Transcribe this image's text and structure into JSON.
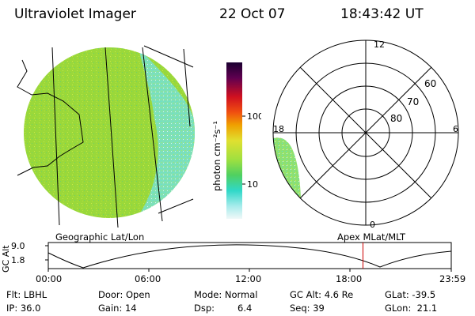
{
  "header": {
    "instrument": "Ultraviolet Imager",
    "date": "22 Oct 07",
    "time": "18:43:42 UT"
  },
  "colorbar": {
    "label": "photon cm⁻²s⁻¹",
    "ticks": [
      {
        "label": "100",
        "value": 100
      },
      {
        "label": "10",
        "value": 10
      }
    ]
  },
  "polar_plot": {
    "mlt_labels": {
      "top": "12",
      "left": "18",
      "right": "6",
      "bottom": "0"
    },
    "lat_labels": [
      "60",
      "70",
      "80"
    ]
  },
  "geo_label": "Geographic Lat/Lon",
  "apex_label": "Apex MLat/MLT",
  "orbit": {
    "ylabel": "GC Alt",
    "y_ticks": [
      "9.0",
      "1.8"
    ],
    "x_ticks": [
      "00:00",
      "06:00",
      "12:00",
      "18:00",
      "23:59"
    ],
    "current_time_hours": 18.73
  },
  "info": {
    "filter": "Flt: LBHL",
    "ip": "IP: 36.0",
    "door": "Door: Open",
    "gain": "Gain: 14",
    "mode": "Mode: Normal",
    "dsp_label": "Dsp:",
    "dsp_value": "6.4",
    "gc_alt": "GC Alt: 4.6 Re",
    "seq": "Seq: 39",
    "glat": "GLat: -39.5",
    "glon": "GLon:  21.1"
  },
  "colors": {
    "aurora_green": "#a8e040",
    "aurora_cyan": "#60e8d0",
    "orbit_marker": "#cc0000"
  }
}
